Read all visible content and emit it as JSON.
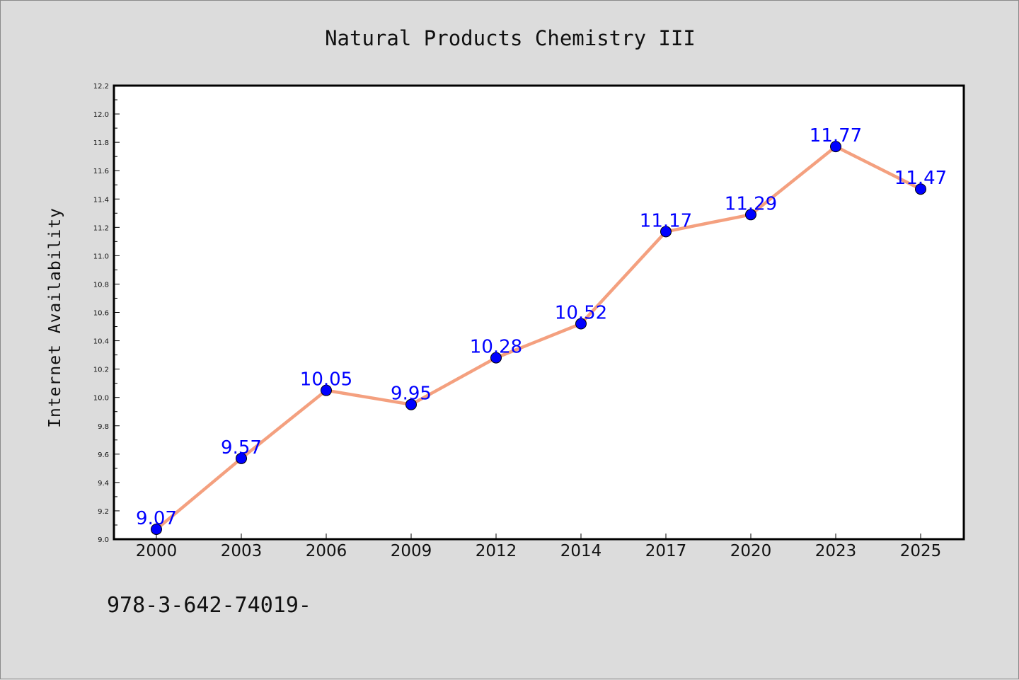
{
  "colors": {
    "background": "#dcdcdc",
    "plot_background": "#ffffff",
    "line": "#f4a07f",
    "marker": "#0000ff",
    "data_label": "#0000ff",
    "text": "#111111"
  },
  "footer_text": "978-3-642-74019-",
  "chart_data": {
    "type": "line",
    "title": "Natural Products Chemistry III",
    "xlabel": "",
    "ylabel": "Internet Availability",
    "categories": [
      "2000",
      "2003",
      "2006",
      "2009",
      "2012",
      "2014",
      "2017",
      "2020",
      "2023",
      "2025"
    ],
    "series": [
      {
        "values": [
          9.07,
          9.57,
          10.05,
          9.95,
          10.28,
          10.52,
          11.17,
          11.29,
          11.77,
          11.47
        ],
        "labels": [
          "9.07",
          "9.57",
          "10.05",
          "9.95",
          "10.28",
          "10.52",
          "11.17",
          "11.29",
          "11.77",
          "11.47"
        ]
      }
    ],
    "ylim": [
      9.0,
      12.2
    ],
    "yticks": [
      "9.0",
      "9.2",
      "9.4",
      "9.6",
      "9.8",
      "10.0",
      "10.2",
      "10.4",
      "10.6",
      "10.8",
      "11.0",
      "11.2",
      "11.4",
      "11.6",
      "11.8",
      "12.0",
      "12.2"
    ],
    "grid": false,
    "legend": "none"
  }
}
